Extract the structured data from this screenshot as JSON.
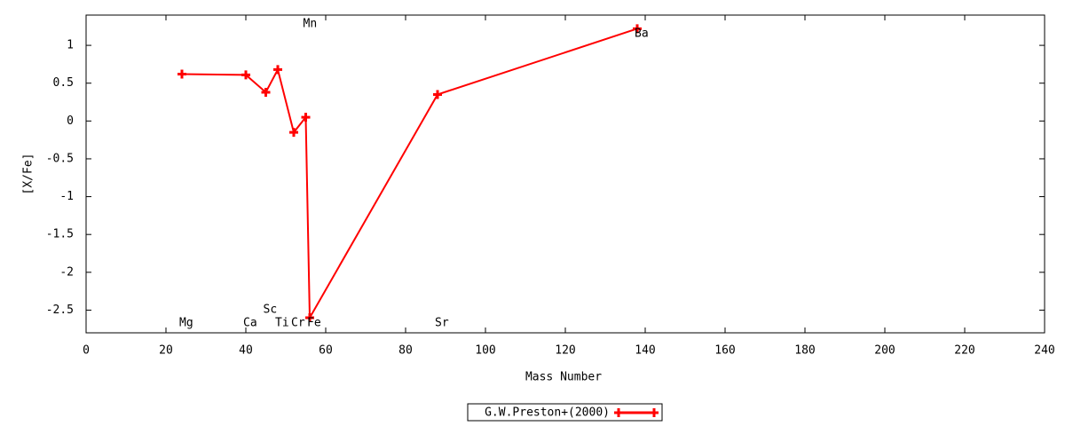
{
  "chart_data": {
    "type": "line",
    "x_label": "Mass Number",
    "y_label": "[X/Fe]",
    "x": [
      24,
      40,
      45,
      48,
      52,
      55,
      56,
      88,
      138
    ],
    "point_labels": [
      "Mg",
      "Ca",
      "Sc",
      "Ti",
      "Cr",
      "Mn",
      "Fe",
      "Sr",
      "Ba"
    ],
    "series": [
      {
        "name": "G.W.Preston+(2000)",
        "color": "#ff0000",
        "values": [
          0.62,
          0.61,
          0.38,
          0.68,
          -0.15,
          0.05,
          -2.6,
          0.35,
          1.22
        ]
      }
    ],
    "xlim": [
      0,
      240
    ],
    "xticks": [
      0,
      20,
      40,
      60,
      80,
      100,
      120,
      140,
      160,
      180,
      200,
      220,
      240
    ],
    "ylim": [
      -2.8,
      1.4
    ],
    "yticks": [
      -2.5,
      -2,
      -1.5,
      -1,
      -0.5,
      0,
      0.5,
      1
    ],
    "legend": "bottom"
  }
}
